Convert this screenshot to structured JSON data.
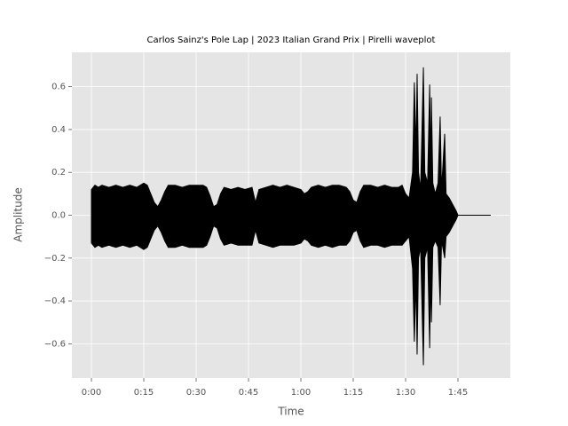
{
  "chart_data": {
    "type": "waveplot",
    "title": "Carlos Sainz's Pole Lap | 2023 Italian Grand Prix | Pirelli waveplot",
    "x_label": "Time",
    "y_label": "Amplitude",
    "x": [
      0,
      1,
      2,
      3,
      5,
      7,
      9,
      11,
      13,
      15,
      16,
      17,
      18,
      19,
      20,
      21,
      22,
      24,
      26,
      28,
      30,
      32,
      33,
      34,
      35,
      36,
      37,
      38,
      40,
      42,
      44,
      46,
      47,
      48,
      50,
      52,
      54,
      56,
      58,
      60,
      61,
      62,
      63,
      65,
      67,
      69,
      71,
      73,
      74,
      75,
      76,
      77,
      78,
      80,
      82,
      84,
      86,
      88,
      89,
      90,
      91,
      92,
      92.5,
      93,
      93.3,
      93.7,
      94.3,
      95.1,
      95.5,
      96.3,
      96.9,
      97.2,
      97.4,
      97.8,
      98.5,
      99.3,
      99.9,
      100.3,
      101.2,
      101.6,
      102.5,
      103.5,
      104.5,
      105,
      114.4
    ],
    "series": [
      {
        "name": "upper",
        "color": "#000000",
        "values": [
          0.12,
          0.14,
          0.13,
          0.14,
          0.13,
          0.14,
          0.13,
          0.14,
          0.13,
          0.15,
          0.14,
          0.1,
          0.06,
          0.04,
          0.07,
          0.11,
          0.14,
          0.14,
          0.13,
          0.14,
          0.14,
          0.14,
          0.13,
          0.09,
          0.04,
          0.05,
          0.1,
          0.13,
          0.12,
          0.13,
          0.12,
          0.13,
          0.06,
          0.12,
          0.13,
          0.14,
          0.13,
          0.14,
          0.13,
          0.12,
          0.1,
          0.11,
          0.13,
          0.14,
          0.13,
          0.14,
          0.14,
          0.13,
          0.11,
          0.07,
          0.06,
          0.11,
          0.14,
          0.14,
          0.13,
          0.14,
          0.13,
          0.13,
          0.14,
          0.1,
          0.08,
          0.2,
          0.62,
          0.3,
          0.66,
          0.2,
          0.12,
          0.69,
          0.2,
          0.15,
          0.61,
          0.2,
          0.55,
          0.15,
          0.1,
          0.15,
          0.46,
          0.12,
          0.38,
          0.1,
          0.08,
          0.05,
          0.02,
          0,
          0
        ]
      },
      {
        "name": "lower",
        "color": "#000000",
        "values": [
          -0.13,
          -0.15,
          -0.14,
          -0.15,
          -0.14,
          -0.15,
          -0.14,
          -0.15,
          -0.14,
          -0.16,
          -0.15,
          -0.11,
          -0.07,
          -0.05,
          -0.08,
          -0.12,
          -0.15,
          -0.15,
          -0.14,
          -0.15,
          -0.15,
          -0.15,
          -0.14,
          -0.1,
          -0.05,
          -0.06,
          -0.11,
          -0.14,
          -0.13,
          -0.14,
          -0.14,
          -0.14,
          -0.07,
          -0.13,
          -0.14,
          -0.15,
          -0.14,
          -0.14,
          -0.14,
          -0.13,
          -0.11,
          -0.12,
          -0.14,
          -0.15,
          -0.14,
          -0.15,
          -0.14,
          -0.14,
          -0.12,
          -0.08,
          -0.07,
          -0.12,
          -0.15,
          -0.14,
          -0.14,
          -0.15,
          -0.14,
          -0.14,
          -0.14,
          -0.12,
          -0.1,
          -0.25,
          -0.59,
          -0.3,
          -0.65,
          -0.2,
          -0.15,
          -0.7,
          -0.2,
          -0.15,
          -0.62,
          -0.25,
          -0.5,
          -0.15,
          -0.12,
          -0.15,
          -0.42,
          -0.12,
          -0.2,
          -0.1,
          -0.08,
          -0.05,
          -0.02,
          0,
          0
        ]
      }
    ],
    "xlim": [
      -5.6,
      120
    ],
    "xticks": [
      {
        "value": 0,
        "label": "0:00"
      },
      {
        "value": 15,
        "label": "0:15"
      },
      {
        "value": 30,
        "label": "0:30"
      },
      {
        "value": 45,
        "label": "0:45"
      },
      {
        "value": 60,
        "label": "1:00"
      },
      {
        "value": 75,
        "label": "1:15"
      },
      {
        "value": 90,
        "label": "1:30"
      },
      {
        "value": 105,
        "label": "1:45"
      }
    ],
    "ylim": [
      -0.76,
      0.76
    ],
    "yticks": [
      {
        "value": -0.6,
        "label": "−0.6"
      },
      {
        "value": -0.4,
        "label": "−0.4"
      },
      {
        "value": -0.2,
        "label": "−0.2"
      },
      {
        "value": 0,
        "label": "0.0"
      },
      0.2,
      0.4,
      0.6
    ],
    "grid": true
  }
}
